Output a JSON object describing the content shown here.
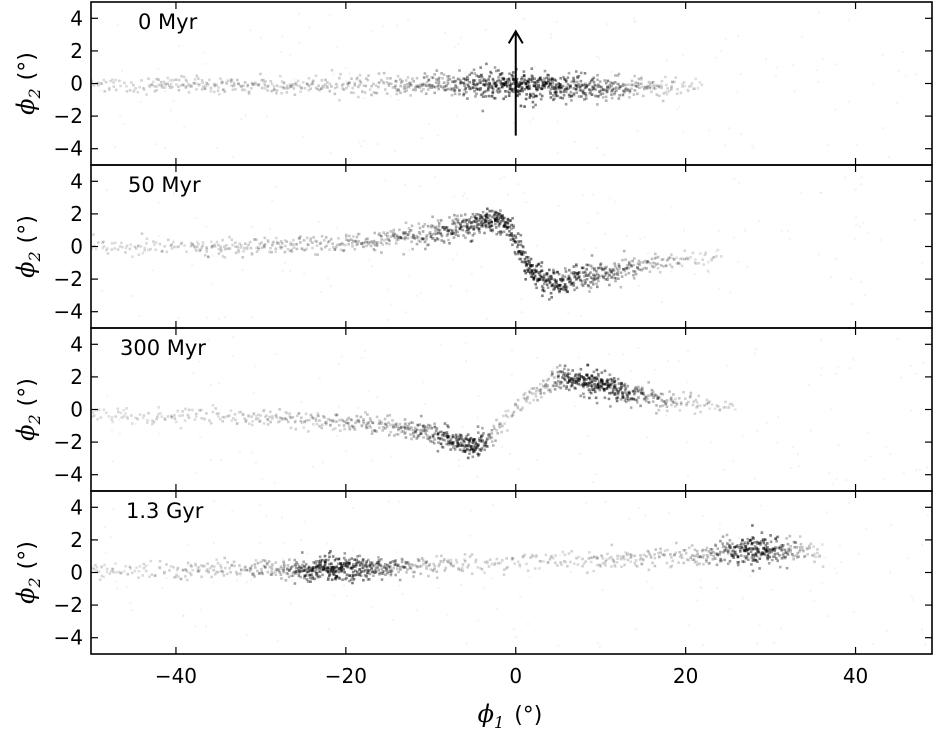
{
  "chart_data": {
    "type": "heatmap",
    "xlabel_symbol": "ϕ",
    "xlabel_sub": "1",
    "xlabel_unit": "(°)",
    "ylabel_symbol": "ϕ",
    "ylabel_sub": "2",
    "ylabel_unit": "(°)",
    "xlim": [
      -50,
      49
    ],
    "ylim": [
      -5,
      5
    ],
    "xticks": [
      -40,
      -20,
      0,
      20,
      40
    ],
    "xtick_labels": [
      "−40",
      "−20",
      "0",
      "20",
      "40"
    ],
    "yticks": [
      -4,
      -2,
      0,
      2,
      4
    ],
    "ytick_labels": [
      "−4",
      "−2",
      "0",
      "2",
      "4"
    ],
    "grid": false,
    "panels": [
      {
        "title": "0 Myr",
        "arrow": {
          "x": 0,
          "y_from": -3.2,
          "y_to": 3.2
        },
        "track": [
          [
            -50,
            0.0,
            0.25,
            0.15
          ],
          [
            -30,
            0.0,
            0.25,
            0.2
          ],
          [
            -15,
            0.0,
            0.3,
            0.25
          ],
          [
            -8,
            0.0,
            0.35,
            0.5
          ],
          [
            -4,
            0.0,
            0.4,
            0.8
          ],
          [
            0,
            0.0,
            0.45,
            1.0
          ],
          [
            4,
            -0.1,
            0.45,
            0.9
          ],
          [
            8,
            -0.2,
            0.4,
            0.7
          ],
          [
            12,
            -0.2,
            0.35,
            0.5
          ],
          [
            16,
            -0.2,
            0.3,
            0.3
          ],
          [
            19,
            -0.2,
            0.25,
            0.15
          ],
          [
            22,
            -0.2,
            0.2,
            0.05
          ]
        ]
      },
      {
        "title": "50 Myr",
        "track": [
          [
            -50,
            0.0,
            0.25,
            0.12
          ],
          [
            -30,
            0.1,
            0.25,
            0.2
          ],
          [
            -18,
            0.3,
            0.3,
            0.3
          ],
          [
            -10,
            0.8,
            0.35,
            0.5
          ],
          [
            -5,
            1.5,
            0.4,
            0.8
          ],
          [
            -3,
            1.8,
            0.4,
            1.0
          ],
          [
            -1,
            1.4,
            0.4,
            0.9
          ],
          [
            0,
            0.3,
            0.4,
            0.8
          ],
          [
            1,
            -0.9,
            0.4,
            0.9
          ],
          [
            2,
            -1.7,
            0.4,
            1.0
          ],
          [
            4,
            -2.1,
            0.4,
            0.9
          ],
          [
            8,
            -1.8,
            0.35,
            0.7
          ],
          [
            12,
            -1.4,
            0.35,
            0.5
          ],
          [
            16,
            -1.0,
            0.3,
            0.3
          ],
          [
            20,
            -0.8,
            0.25,
            0.15
          ],
          [
            24,
            -0.6,
            0.2,
            0.05
          ]
        ]
      },
      {
        "title": "300 Myr",
        "track": [
          [
            -50,
            -0.3,
            0.25,
            0.12
          ],
          [
            -35,
            -0.3,
            0.25,
            0.15
          ],
          [
            -25,
            -0.5,
            0.25,
            0.2
          ],
          [
            -15,
            -0.9,
            0.3,
            0.35
          ],
          [
            -10,
            -1.4,
            0.35,
            0.6
          ],
          [
            -7,
            -1.9,
            0.4,
            0.85
          ],
          [
            -5,
            -2.2,
            0.4,
            1.0
          ],
          [
            -3,
            -1.6,
            0.35,
            0.4
          ],
          [
            -1,
            -0.3,
            0.35,
            0.2
          ],
          [
            1,
            0.7,
            0.35,
            0.2
          ],
          [
            4,
            1.6,
            0.4,
            0.4
          ],
          [
            6,
            2.0,
            0.4,
            0.8
          ],
          [
            9,
            1.7,
            0.4,
            1.0
          ],
          [
            12,
            1.2,
            0.4,
            0.85
          ],
          [
            15,
            0.9,
            0.35,
            0.5
          ],
          [
            18,
            0.6,
            0.3,
            0.3
          ],
          [
            22,
            0.4,
            0.25,
            0.15
          ],
          [
            26,
            0.3,
            0.2,
            0.05
          ]
        ]
      },
      {
        "title": "1.3 Gyr",
        "track": [
          [
            -50,
            0.2,
            0.25,
            0.1
          ],
          [
            -35,
            0.25,
            0.25,
            0.2
          ],
          [
            -28,
            0.3,
            0.3,
            0.35
          ],
          [
            -25,
            0.3,
            0.35,
            0.8
          ],
          [
            -22,
            0.3,
            0.4,
            1.0
          ],
          [
            -19,
            0.3,
            0.4,
            0.9
          ],
          [
            -16,
            0.35,
            0.35,
            0.6
          ],
          [
            -12,
            0.4,
            0.3,
            0.3
          ],
          [
            -5,
            0.6,
            0.3,
            0.15
          ],
          [
            5,
            0.8,
            0.3,
            0.15
          ],
          [
            15,
            1.0,
            0.3,
            0.2
          ],
          [
            22,
            1.2,
            0.35,
            0.3
          ],
          [
            26,
            1.4,
            0.45,
            0.8
          ],
          [
            28,
            1.5,
            0.5,
            1.0
          ],
          [
            30,
            1.5,
            0.45,
            0.8
          ],
          [
            33,
            1.3,
            0.35,
            0.35
          ],
          [
            36,
            1.2,
            0.3,
            0.12
          ]
        ]
      }
    ]
  }
}
